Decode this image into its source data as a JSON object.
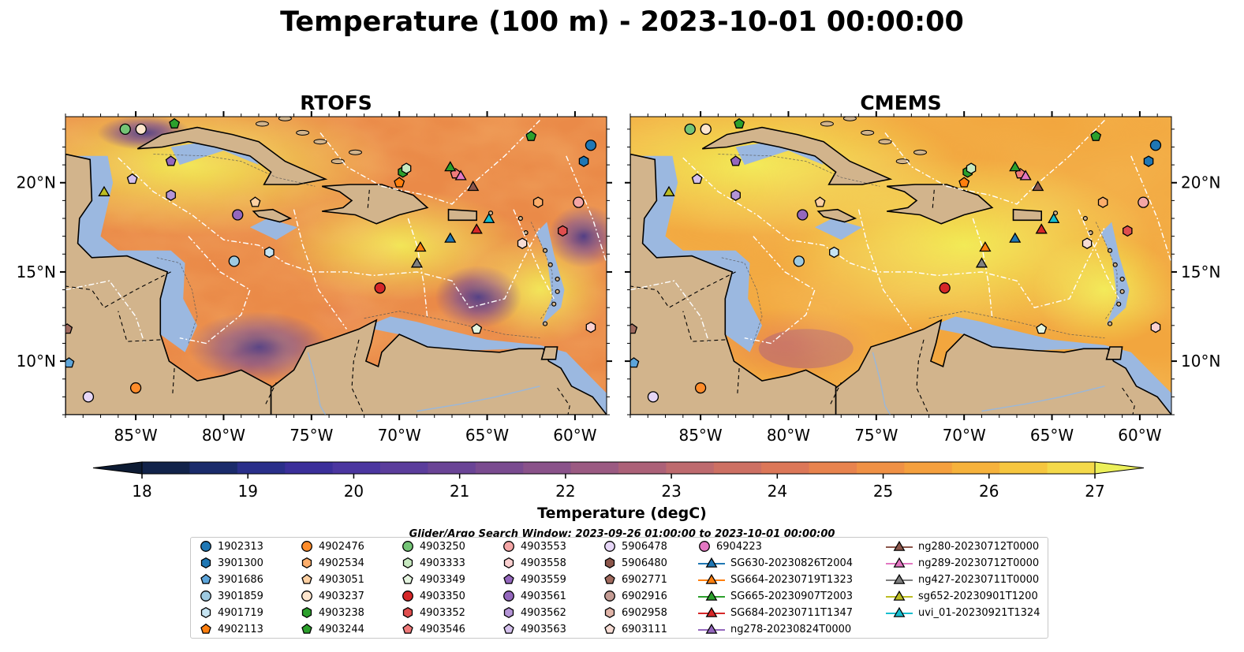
{
  "title": "Temperature (100 m) - 2023-10-01 00:00:00",
  "chart_data": {
    "type": "heatmap",
    "variable": "Temperature (100 m)",
    "time": "2023-10-01 00:00:00",
    "panels": [
      {
        "title": "RTOFS"
      },
      {
        "title": "CMEMS"
      }
    ],
    "lon_range": [
      -89,
      -58.2
    ],
    "lat_range": [
      7,
      23.7
    ],
    "x_ticks": [
      -85,
      -80,
      -75,
      -70,
      -65,
      -60
    ],
    "x_tick_labels": [
      "85°W",
      "80°W",
      "75°W",
      "70°W",
      "65°W",
      "60°W"
    ],
    "y_ticks": [
      10,
      15,
      20
    ],
    "y_tick_labels": [
      "10°N",
      "15°N",
      "20°N"
    ],
    "colorbar": {
      "label": "Temperature (degC)",
      "vmin": 18,
      "vmax": 27,
      "ticks": [
        18,
        19,
        20,
        21,
        22,
        23,
        24,
        25,
        26,
        27
      ],
      "extend": "both",
      "colors": [
        "#0d1b33",
        "#12234a",
        "#1a2b6b",
        "#2a2f8a",
        "#3b2f9a",
        "#4b36a0",
        "#5b3d9c",
        "#6a4496",
        "#7a4b90",
        "#8a528a",
        "#9b5a82",
        "#ac6178",
        "#be6a6e",
        "#cd7063",
        "#dc7758",
        "#e8834e",
        "#f09145",
        "#f5a03e",
        "#f6b23c",
        "#f6c63f",
        "#f4d94a",
        "#ecf05a"
      ]
    },
    "search_window": "Glider/Argo Search Window: 2023-09-26 01:00:00 to 2023-10-01 00:00:00",
    "land_color": "#d2b48c",
    "shelf_color": "#9bb8e0",
    "legend_columns": [
      [
        {
          "label": "1902313",
          "marker": "circle",
          "color": "#1f77b4"
        },
        {
          "label": "3901300",
          "marker": "hexagon",
          "color": "#1f77b4"
        },
        {
          "label": "3901686",
          "marker": "pentagon",
          "color": "#5da5da"
        },
        {
          "label": "3901859",
          "marker": "circle",
          "color": "#9ecae1"
        },
        {
          "label": "4901719",
          "marker": "hexagon",
          "color": "#c6e4f2"
        },
        {
          "label": "4902113",
          "marker": "pentagon",
          "color": "#ff7f0e"
        }
      ],
      [
        {
          "label": "4902476",
          "marker": "circle",
          "color": "#ff8c2a"
        },
        {
          "label": "4902534",
          "marker": "hexagon",
          "color": "#fdae6b"
        },
        {
          "label": "4903051",
          "marker": "pentagon",
          "color": "#fdd0a2"
        },
        {
          "label": "4903237",
          "marker": "circle",
          "color": "#fee6ce"
        },
        {
          "label": "4903238",
          "marker": "hexagon",
          "color": "#2ca02c"
        },
        {
          "label": "4903244",
          "marker": "pentagon",
          "color": "#2ca02c"
        }
      ],
      [
        {
          "label": "4903250",
          "marker": "circle",
          "color": "#74c476"
        },
        {
          "label": "4903333",
          "marker": "hexagon",
          "color": "#c7e9c0"
        },
        {
          "label": "4903349",
          "marker": "pentagon",
          "color": "#e5f5e0"
        },
        {
          "label": "4903350",
          "marker": "circle",
          "color": "#d62728"
        },
        {
          "label": "4903352",
          "marker": "hexagon",
          "color": "#e04e4e"
        },
        {
          "label": "4903546",
          "marker": "pentagon",
          "color": "#f07a7a"
        }
      ],
      [
        {
          "label": "4903553",
          "marker": "circle",
          "color": "#f4a6a6"
        },
        {
          "label": "4903558",
          "marker": "hexagon",
          "color": "#fbd0d0"
        },
        {
          "label": "4903559",
          "marker": "pentagon",
          "color": "#9467bd"
        },
        {
          "label": "4903561",
          "marker": "circle",
          "color": "#9467bd"
        },
        {
          "label": "4903562",
          "marker": "hexagon",
          "color": "#b494d6"
        },
        {
          "label": "4903563",
          "marker": "pentagon",
          "color": "#d4c0ec"
        }
      ],
      [
        {
          "label": "5906478",
          "marker": "circle",
          "color": "#e6d6f7"
        },
        {
          "label": "5906480",
          "marker": "hexagon",
          "color": "#8c564b"
        },
        {
          "label": "6902771",
          "marker": "pentagon",
          "color": "#a06a5e"
        },
        {
          "label": "6902916",
          "marker": "circle",
          "color": "#c49c94"
        },
        {
          "label": "6902958",
          "marker": "hexagon",
          "color": "#e0b4a8"
        },
        {
          "label": "6903111",
          "marker": "pentagon",
          "color": "#f6dcd4"
        }
      ],
      [
        {
          "label": "6904223",
          "marker": "circle",
          "color": "#e377c2"
        },
        {
          "label": "SG630-20230826T2004",
          "marker": "triangle-line",
          "color": "#1f77b4"
        },
        {
          "label": "SG664-20230719T1323",
          "marker": "triangle-line",
          "color": "#ff7f0e"
        },
        {
          "label": "SG665-20230907T2003",
          "marker": "triangle-line",
          "color": "#2ca02c"
        },
        {
          "label": "SG684-20230711T1347",
          "marker": "triangle-line",
          "color": "#d62728"
        },
        {
          "label": "ng278-20230824T0000",
          "marker": "triangle-line",
          "color": "#9467bd"
        }
      ],
      [
        {
          "label": "ng280-20230712T0000",
          "marker": "triangle-line",
          "color": "#8c564b"
        },
        {
          "label": "ng289-20230712T0000",
          "marker": "triangle-line",
          "color": "#e377c2"
        },
        {
          "label": "ng427-20230711T0000",
          "marker": "triangle-line",
          "color": "#7f7f7f"
        },
        {
          "label": "sg652-20230901T1200",
          "marker": "triangle-line",
          "color": "#bcbd22"
        },
        {
          "label": "uvi_01-20230921T1324",
          "marker": "triangle-line",
          "color": "#17becf"
        }
      ]
    ],
    "platforms": [
      {
        "lon": -59.1,
        "lat": 22.1,
        "marker": "circle",
        "color": "#1f77b4"
      },
      {
        "lon": -59.5,
        "lat": 21.2,
        "marker": "hexagon",
        "color": "#1f77b4"
      },
      {
        "lon": -88.8,
        "lat": 9.9,
        "marker": "pentagon",
        "color": "#5da5da"
      },
      {
        "lon": -79.4,
        "lat": 15.6,
        "marker": "circle",
        "color": "#9ecae1"
      },
      {
        "lon": -77.4,
        "lat": 16.1,
        "marker": "hexagon",
        "color": "#c6e4f2"
      },
      {
        "lon": -70.0,
        "lat": 20.0,
        "marker": "pentagon",
        "color": "#ff7f0e"
      },
      {
        "lon": -85.0,
        "lat": 8.5,
        "marker": "circle",
        "color": "#ff8c2a"
      },
      {
        "lon": -62.1,
        "lat": 18.9,
        "marker": "hexagon",
        "color": "#fdae6b"
      },
      {
        "lon": -78.2,
        "lat": 18.9,
        "marker": "pentagon",
        "color": "#fdd0a2"
      },
      {
        "lon": -84.7,
        "lat": 23.0,
        "marker": "circle",
        "color": "#fee6ce"
      },
      {
        "lon": -69.8,
        "lat": 20.6,
        "marker": "hexagon",
        "color": "#2ca02c"
      },
      {
        "lon": -62.5,
        "lat": 22.6,
        "marker": "pentagon",
        "color": "#2ca02c"
      },
      {
        "lon": -85.6,
        "lat": 23.0,
        "marker": "circle",
        "color": "#74c476"
      },
      {
        "lon": -69.6,
        "lat": 20.8,
        "marker": "hexagon",
        "color": "#c7e9c0"
      },
      {
        "lon": -65.6,
        "lat": 11.8,
        "marker": "pentagon",
        "color": "#e5f5e0"
      },
      {
        "lon": -71.1,
        "lat": 14.1,
        "marker": "circle",
        "color": "#d62728"
      },
      {
        "lon": -60.7,
        "lat": 17.3,
        "marker": "hexagon",
        "color": "#e04e4e"
      },
      {
        "lon": -66.8,
        "lat": 20.5,
        "marker": "pentagon",
        "color": "#f07a7a"
      },
      {
        "lon": -59.8,
        "lat": 18.9,
        "marker": "circle",
        "color": "#f4a6a6"
      },
      {
        "lon": -59.1,
        "lat": 11.9,
        "marker": "hexagon",
        "color": "#fbd0d0"
      },
      {
        "lon": -83.0,
        "lat": 21.2,
        "marker": "pentagon",
        "color": "#9467bd"
      },
      {
        "lon": -79.2,
        "lat": 18.2,
        "marker": "circle",
        "color": "#9467bd"
      },
      {
        "lon": -83.0,
        "lat": 19.3,
        "marker": "hexagon",
        "color": "#b494d6"
      },
      {
        "lon": -85.2,
        "lat": 20.2,
        "marker": "pentagon",
        "color": "#d4c0ec"
      },
      {
        "lon": -87.7,
        "lat": 8.0,
        "marker": "circle",
        "color": "#e6d6f7"
      },
      {
        "lon": -63.0,
        "lat": 16.6,
        "marker": "hexagon",
        "color": "#f6dcd4"
      },
      {
        "lon": -88.9,
        "lat": 11.8,
        "marker": "pentagon",
        "color": "#a06a5e"
      },
      {
        "lon": -82.8,
        "lat": 23.3,
        "marker": "pentagon",
        "color": "#2ca02c"
      },
      {
        "lon": -67.1,
        "lat": 16.9,
        "marker": "triangle",
        "color": "#1f77b4"
      },
      {
        "lon": -68.8,
        "lat": 16.4,
        "marker": "triangle",
        "color": "#ff7f0e"
      },
      {
        "lon": -67.1,
        "lat": 20.9,
        "marker": "triangle",
        "color": "#2ca02c"
      },
      {
        "lon": -65.6,
        "lat": 17.4,
        "marker": "triangle",
        "color": "#d62728"
      },
      {
        "lon": -65.8,
        "lat": 19.8,
        "marker": "triangle",
        "color": "#8c564b"
      },
      {
        "lon": -66.5,
        "lat": 20.4,
        "marker": "triangle",
        "color": "#e377c2"
      },
      {
        "lon": -69.0,
        "lat": 15.5,
        "marker": "triangle",
        "color": "#7f7f7f"
      },
      {
        "lon": -86.8,
        "lat": 19.5,
        "marker": "triangle",
        "color": "#bcbd22"
      },
      {
        "lon": -64.9,
        "lat": 18.0,
        "marker": "triangle",
        "color": "#17becf"
      }
    ]
  }
}
